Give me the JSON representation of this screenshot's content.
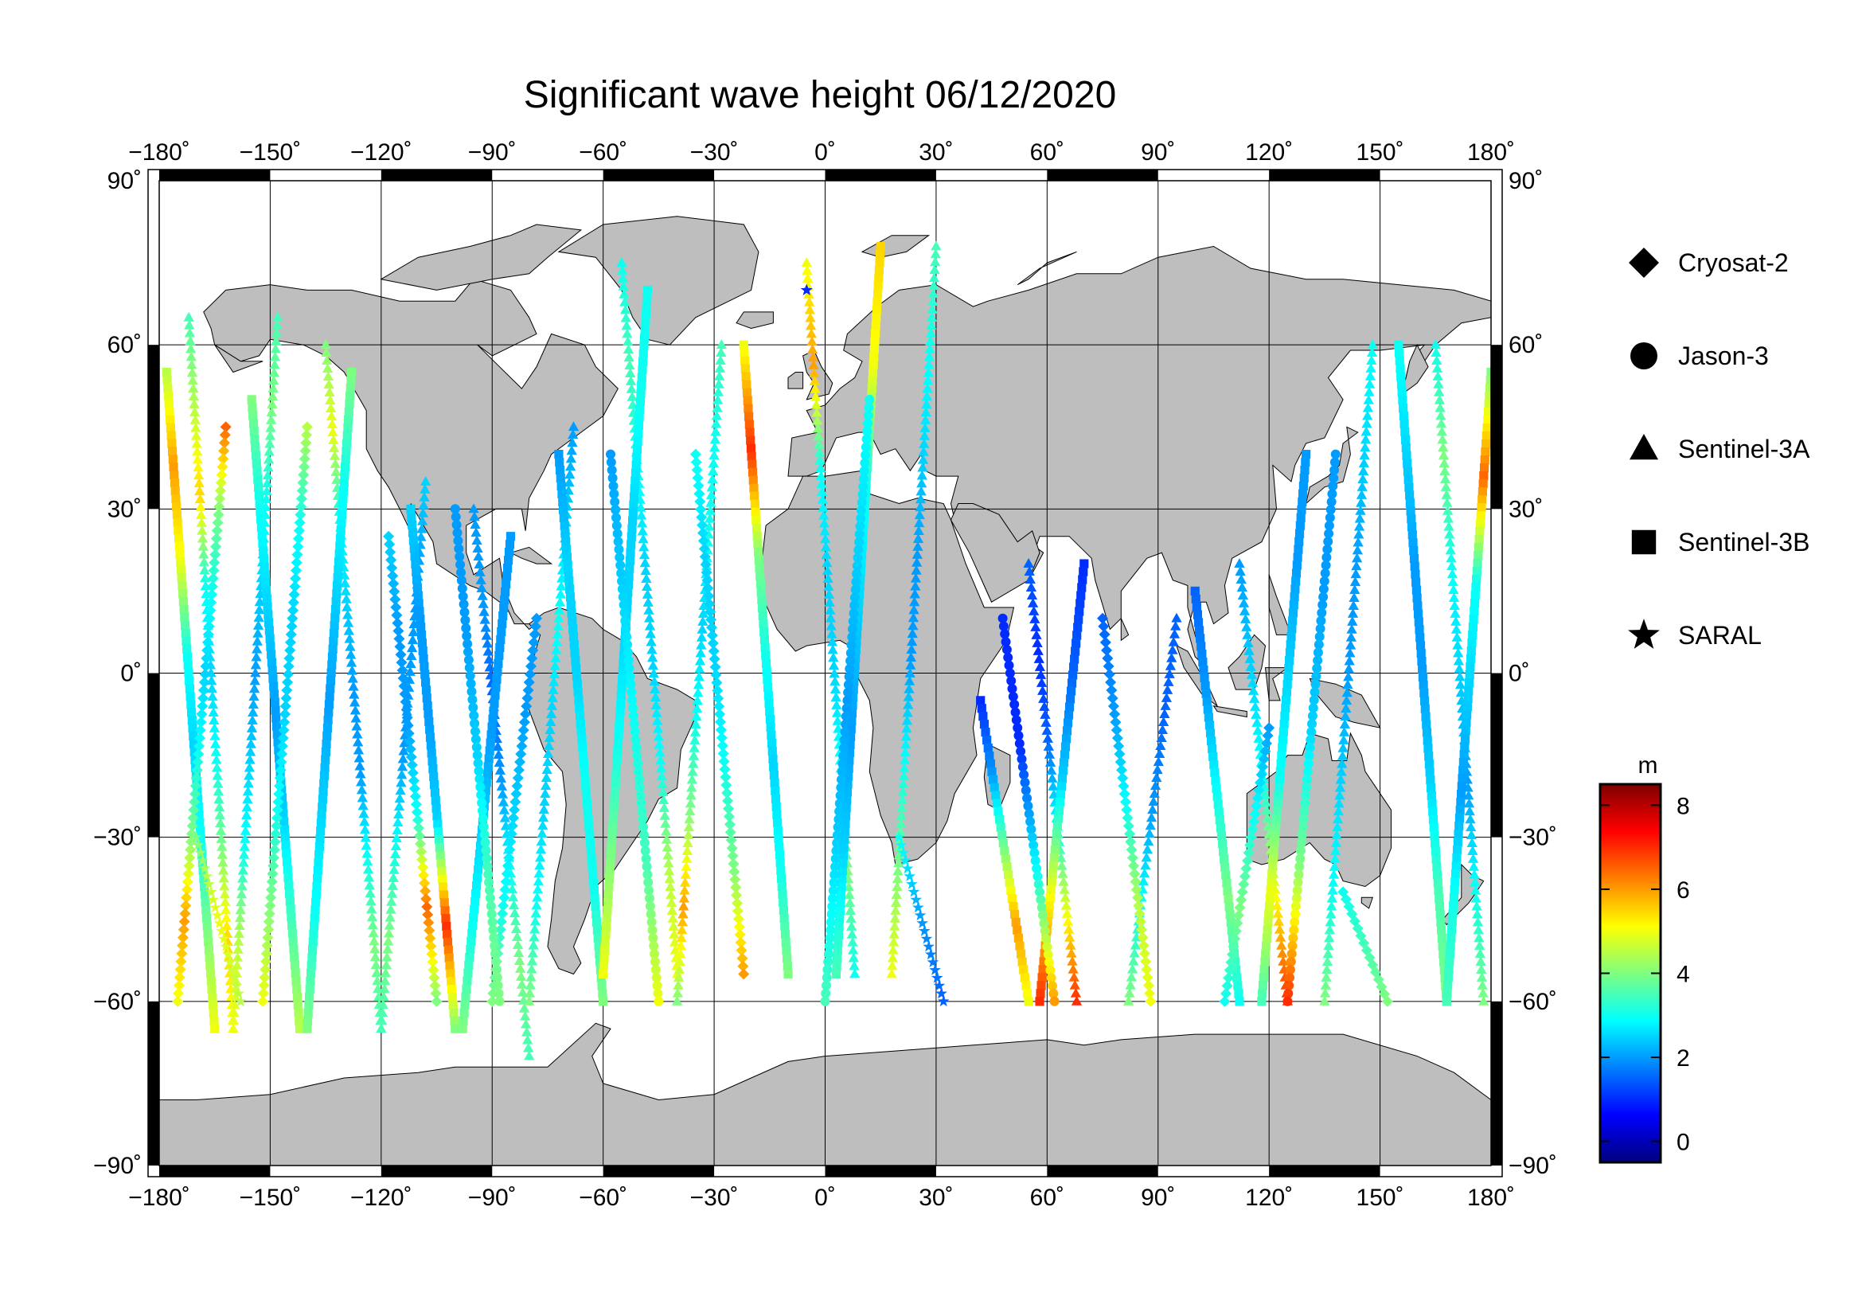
{
  "title": "Significant wave height 06/12/2020",
  "map": {
    "projection": "equirectangular",
    "lon_range": [
      -180,
      180
    ],
    "lat_range": [
      -90,
      90
    ],
    "grid": true,
    "lon_ticks": [
      -180,
      -150,
      -120,
      -90,
      -60,
      -30,
      0,
      30,
      60,
      90,
      120,
      150,
      180
    ],
    "lat_ticks": [
      -90,
      -60,
      -30,
      0,
      30,
      60,
      90
    ],
    "lon_tick_labels": [
      "−180˚",
      "−150˚",
      "−120˚",
      "−90˚",
      "−60˚",
      "−30˚",
      "0˚",
      "30˚",
      "60˚",
      "90˚",
      "120˚",
      "150˚",
      "180˚"
    ],
    "lat_tick_labels": [
      "−90˚",
      "−60˚",
      "−30˚",
      "0˚",
      "30˚",
      "60˚",
      "90˚"
    ],
    "land_color": "#bebebe",
    "ocean_color": "#ffffff",
    "frame": "alternating black/white border"
  },
  "legend": {
    "placement": "right",
    "items": [
      {
        "label": "Cryosat-2",
        "icon": "diamond-icon"
      },
      {
        "label": "Jason-3",
        "icon": "circle-icon"
      },
      {
        "label": "Sentinel-3A",
        "icon": "triangle-icon"
      },
      {
        "label": "Sentinel-3B",
        "icon": "square-icon"
      },
      {
        "label": "SARAL",
        "icon": "star-icon"
      }
    ]
  },
  "colorbar": {
    "unit": "m",
    "range": [
      -0.5,
      8.5
    ],
    "ticks": [
      0,
      2,
      4,
      6,
      8
    ],
    "tick_labels": [
      "0",
      "2",
      "4",
      "6",
      "8"
    ],
    "colormap": "jet",
    "colors": [
      "#00007f",
      "#0000ff",
      "#007fff",
      "#00ffff",
      "#7fff7f",
      "#ffff00",
      "#ff7f00",
      "#ff0000",
      "#7f0000"
    ]
  },
  "chart_data": {
    "type": "scatter",
    "title": "Significant wave height 06/12/2020",
    "xlabel": "",
    "ylabel": "",
    "xlim": [
      -180,
      180
    ],
    "ylim": [
      -90,
      90
    ],
    "value_unit": "m",
    "series": [
      {
        "name": "Sentinel-3A",
        "marker": "triangle",
        "tracks": [
          {
            "lon": [
              -172,
              -160
            ],
            "lat": [
              65,
              -65
            ],
            "swh": [
              3.5,
              4.5,
              5.5,
              3,
              2.5,
              3,
              4,
              5.5,
              5
            ]
          },
          {
            "lon": [
              -148,
              -160
            ],
            "lat": [
              65,
              -65
            ],
            "swh": [
              3.5,
              4,
              3,
              2.5,
              2,
              2.5,
              3,
              4.5,
              5
            ]
          },
          {
            "lon": [
              -135,
              -120
            ],
            "lat": [
              60,
              -65
            ],
            "swh": [
              4,
              5,
              3,
              2.5,
              2,
              2,
              3,
              4,
              3.5
            ]
          },
          {
            "lon": [
              -108,
              -120
            ],
            "lat": [
              35,
              -65
            ],
            "swh": [
              2.5,
              2,
              2,
              2,
              3,
              4,
              3.5
            ]
          },
          {
            "lon": [
              -95,
              -80
            ],
            "lat": [
              30,
              -70
            ],
            "swh": [
              2,
              2,
              1.5,
              2,
              3,
              4,
              3.5
            ]
          },
          {
            "lon": [
              -68,
              -80
            ],
            "lat": [
              45,
              -60
            ],
            "swh": [
              2,
              2.5,
              3,
              2.5,
              2.5,
              3,
              4
            ]
          },
          {
            "lon": [
              -55,
              -40
            ],
            "lat": [
              75,
              -55
            ],
            "swh": [
              3,
              3.5,
              3,
              2.5,
              2.5,
              3,
              4.5,
              5
            ]
          },
          {
            "lon": [
              -28,
              -40
            ],
            "lat": [
              60,
              -60
            ],
            "swh": [
              3.5,
              3,
              3,
              2.5,
              3,
              4,
              6,
              4
            ]
          },
          {
            "lon": [
              -5,
              8
            ],
            "lat": [
              75,
              -55
            ],
            "swh": [
              5,
              6,
              3,
              2.5,
              2.5,
              3,
              4,
              3
            ]
          },
          {
            "lon": [
              30,
              18
            ],
            "lat": [
              78,
              -55
            ],
            "swh": [
              3.5,
              3,
              2.5,
              2,
              2,
              3,
              4,
              5
            ]
          },
          {
            "lon": [
              55,
              68
            ],
            "lat": [
              20,
              -60
            ],
            "swh": [
              1.5,
              1,
              1.5,
              3,
              5,
              7
            ]
          },
          {
            "lon": [
              95,
              82
            ],
            "lat": [
              10,
              -60
            ],
            "swh": [
              1.5,
              1.5,
              2,
              3,
              4
            ]
          },
          {
            "lon": [
              112,
              125
            ],
            "lat": [
              20,
              -60
            ],
            "swh": [
              2,
              2.5,
              3,
              5,
              7
            ]
          },
          {
            "lon": [
              148,
              135
            ],
            "lat": [
              60,
              -60
            ],
            "swh": [
              3,
              2.5,
              2,
              2,
              2.5,
              3,
              4
            ]
          },
          {
            "lon": [
              165,
              178
            ],
            "lat": [
              60,
              -60
            ],
            "swh": [
              3,
              4,
              3,
              2.5,
              2,
              3,
              4
            ]
          }
        ]
      },
      {
        "name": "Sentinel-3B",
        "marker": "square",
        "tracks": [
          {
            "lon": [
              -178,
              -165
            ],
            "lat": [
              55,
              -65
            ],
            "swh": [
              4.5,
              6,
              5,
              3,
              2.5,
              3,
              4,
              5
            ]
          },
          {
            "lon": [
              -155,
              -142
            ],
            "lat": [
              50,
              -65
            ],
            "swh": [
              4,
              3,
              2.5,
              2,
              2.5,
              3.5,
              4.5
            ]
          },
          {
            "lon": [
              -128,
              -140
            ],
            "lat": [
              55,
              -65
            ],
            "swh": [
              4,
              3,
              2.5,
              2,
              2.5,
              3,
              4
            ]
          },
          {
            "lon": [
              -112,
              -100
            ],
            "lat": [
              30,
              -65
            ],
            "swh": [
              2.5,
              2,
              2,
              2.5,
              7,
              4
            ]
          },
          {
            "lon": [
              -85,
              -98
            ],
            "lat": [
              25,
              -65
            ],
            "swh": [
              2,
              2,
              2,
              2.5,
              3,
              4
            ]
          },
          {
            "lon": [
              -72,
              -60
            ],
            "lat": [
              40,
              -60
            ],
            "swh": [
              2,
              2.5,
              2.5,
              3,
              3,
              4
            ]
          },
          {
            "lon": [
              -48,
              -60
            ],
            "lat": [
              70,
              -55
            ],
            "swh": [
              3,
              3,
              2.5,
              2.5,
              3,
              4,
              5
            ]
          },
          {
            "lon": [
              -22,
              -10
            ],
            "lat": [
              60,
              -55
            ],
            "swh": [
              5,
              7,
              4,
              3,
              2.5,
              3,
              4
            ]
          },
          {
            "lon": [
              15,
              3
            ],
            "lat": [
              78,
              -55
            ],
            "swh": [
              5.5,
              5,
              3,
              2.5,
              2,
              2.5,
              3.5
            ]
          },
          {
            "lon": [
              42,
              55
            ],
            "lat": [
              -5,
              -60
            ],
            "swh": [
              1,
              2,
              4,
              6,
              5
            ]
          },
          {
            "lon": [
              70,
              58
            ],
            "lat": [
              20,
              -60
            ],
            "swh": [
              1,
              1.5,
              2.5,
              5,
              7
            ]
          },
          {
            "lon": [
              100,
              112
            ],
            "lat": [
              15,
              -60
            ],
            "swh": [
              1.5,
              2,
              3,
              4,
              3
            ]
          },
          {
            "lon": [
              130,
              118
            ],
            "lat": [
              40,
              -60
            ],
            "swh": [
              2,
              2,
              2.5,
              3,
              5,
              3.5
            ]
          },
          {
            "lon": [
              155,
              168
            ],
            "lat": [
              60,
              -60
            ],
            "swh": [
              3,
              2.5,
              2,
              2,
              2.5,
              3.5,
              4
            ]
          },
          {
            "lon": [
              180,
              168
            ],
            "lat": [
              55,
              -60
            ],
            "swh": [
              4,
              6.5,
              3,
              2.5,
              2,
              3,
              3.5
            ]
          }
        ]
      },
      {
        "name": "Cryosat-2",
        "marker": "diamond",
        "tracks": [
          {
            "lon": [
              -162,
              -175
            ],
            "lat": [
              45,
              -60
            ],
            "swh": [
              6.5,
              4,
              3,
              2.5,
              3,
              4,
              6,
              5
            ]
          },
          {
            "lon": [
              -140,
              -152
            ],
            "lat": [
              45,
              -60
            ],
            "swh": [
              4.5,
              3,
              2.5,
              2.5,
              3,
              4,
              5
            ]
          },
          {
            "lon": [
              -118,
              -105
            ],
            "lat": [
              25,
              -60
            ],
            "swh": [
              2.5,
              2,
              2,
              3,
              6.5,
              4
            ]
          },
          {
            "lon": [
              -78,
              -90
            ],
            "lat": [
              10,
              -60
            ],
            "swh": [
              2,
              2,
              2.5,
              3,
              4
            ]
          },
          {
            "lon": [
              -35,
              -22
            ],
            "lat": [
              40,
              -55
            ],
            "swh": [
              3,
              2.5,
              2.5,
              3,
              4,
              6
            ]
          },
          {
            "lon": [
              75,
              88
            ],
            "lat": [
              10,
              -60
            ],
            "swh": [
              1.5,
              2,
              3,
              4.5,
              5
            ]
          },
          {
            "lon": [
              120,
              108
            ],
            "lat": [
              -10,
              -60
            ],
            "swh": [
              2,
              3,
              4,
              3
            ]
          },
          {
            "lon": [
              140,
              152
            ],
            "lat": [
              -40,
              -60
            ],
            "swh": [
              3,
              4
            ]
          }
        ]
      },
      {
        "name": "Jason-3",
        "marker": "circle",
        "tracks": [
          {
            "lon": [
              -100,
              -88
            ],
            "lat": [
              30,
              -60
            ],
            "swh": [
              2,
              2,
              2.5,
              3.5,
              4
            ]
          },
          {
            "lon": [
              -58,
              -45
            ],
            "lat": [
              40,
              -60
            ],
            "swh": [
              2,
              2.5,
              3,
              3.5,
              5
            ]
          },
          {
            "lon": [
              12,
              0
            ],
            "lat": [
              50,
              -60
            ],
            "swh": [
              3,
              2.5,
              2,
              2.5,
              3.5
            ]
          },
          {
            "lon": [
              48,
              62
            ],
            "lat": [
              10,
              -60
            ],
            "swh": [
              1,
              1,
              3,
              6
            ]
          },
          {
            "lon": [
              138,
              125
            ],
            "lat": [
              40,
              -60
            ],
            "swh": [
              2,
              2,
              2.5,
              4,
              7
            ]
          }
        ]
      },
      {
        "name": "SARAL",
        "marker": "star",
        "tracks": [
          {
            "lon": [
              -170,
              -158
            ],
            "lat": [
              -30,
              -60
            ],
            "swh": [
              4,
              5,
              4.5
            ]
          },
          {
            "lon": [
              20,
              32
            ],
            "lat": [
              -30,
              -60
            ],
            "swh": [
              3,
              2,
              1.5
            ]
          },
          {
            "lon": [
              -5,
              -5
            ],
            "lat": [
              70,
              70
            ],
            "swh": [
              1
            ]
          }
        ]
      }
    ]
  }
}
